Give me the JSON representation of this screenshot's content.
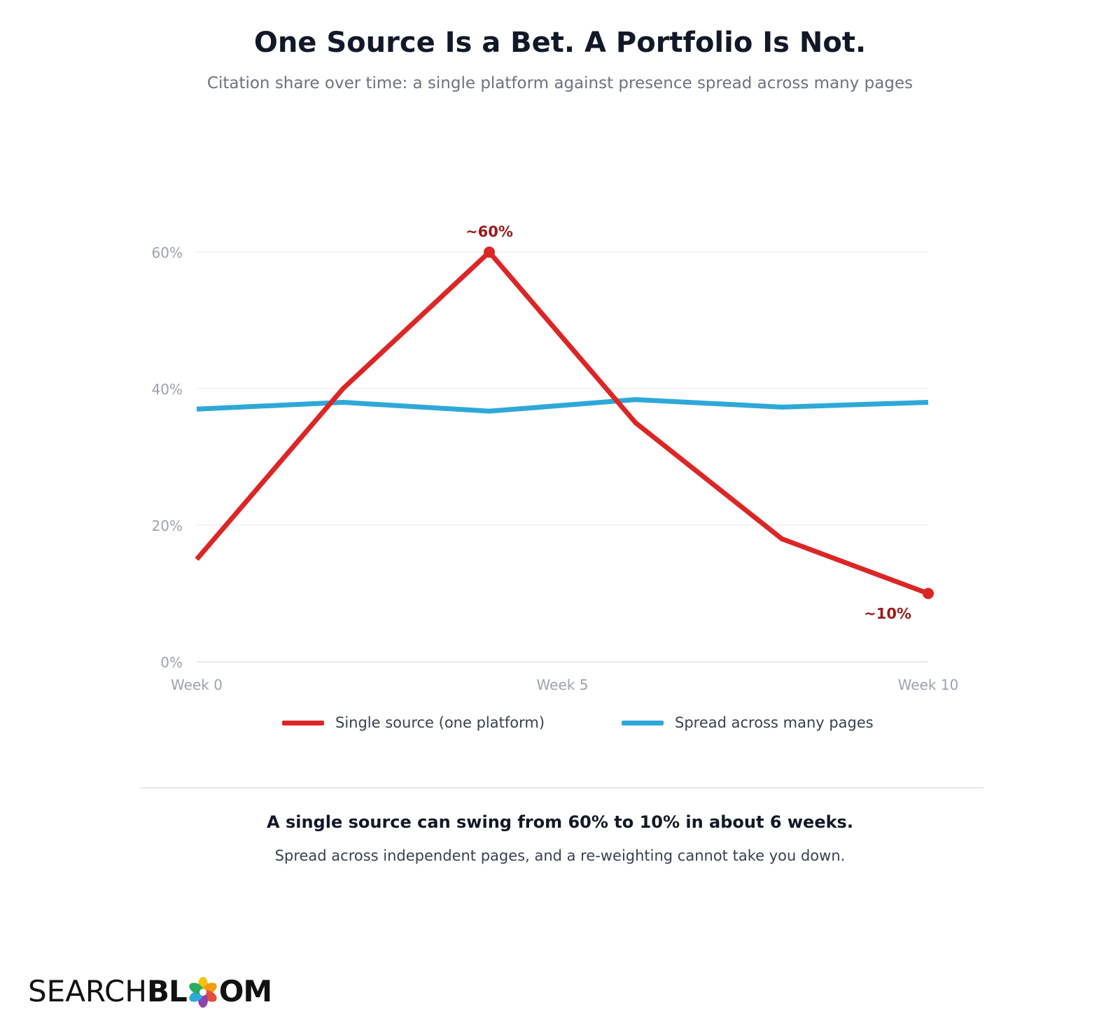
{
  "header": {
    "title": "One Source Is a Bet. A Portfolio Is Not.",
    "subtitle": "Citation share over time: a single platform against presence spread across many pages"
  },
  "chart_data": {
    "type": "line",
    "x_ticks": [
      "Week 0",
      "Week 5",
      "Week 10"
    ],
    "x": [
      0,
      2,
      4,
      6,
      8,
      10
    ],
    "xlim": [
      0,
      10
    ],
    "y_ticks": [
      "0%",
      "20%",
      "40%",
      "60%"
    ],
    "ylim": [
      0,
      60
    ],
    "grid": true,
    "legend_position": "bottom",
    "series": [
      {
        "name": "Single source (one platform)",
        "color": "#dc2626",
        "values": [
          15,
          40,
          60,
          35,
          18,
          10
        ]
      },
      {
        "name": "Spread across many pages",
        "color": "#2ea8d8",
        "values": [
          37,
          38,
          36.7,
          38.4,
          37.3,
          38
        ]
      }
    ],
    "annotations": [
      {
        "series": 0,
        "x": 4,
        "y": 60,
        "label": "~60%",
        "placement": "above"
      },
      {
        "series": 0,
        "x": 10,
        "y": 10,
        "label": "~10%",
        "placement": "below-left"
      }
    ]
  },
  "footer": {
    "takeaway": "A single source can swing from 60% to 10% in about 6 weeks.",
    "takeaway_sub": "Spread across independent pages, and a re-weighting cannot take you down."
  },
  "brand": {
    "logo_text_light": "SEARCH",
    "logo_text_bold_a": "BL",
    "logo_text_bold_b": "OM",
    "logo_colors": [
      "#f4c20d",
      "#f39c12",
      "#e74c3c",
      "#8e44ad",
      "#2eaadc",
      "#27ae60"
    ]
  }
}
